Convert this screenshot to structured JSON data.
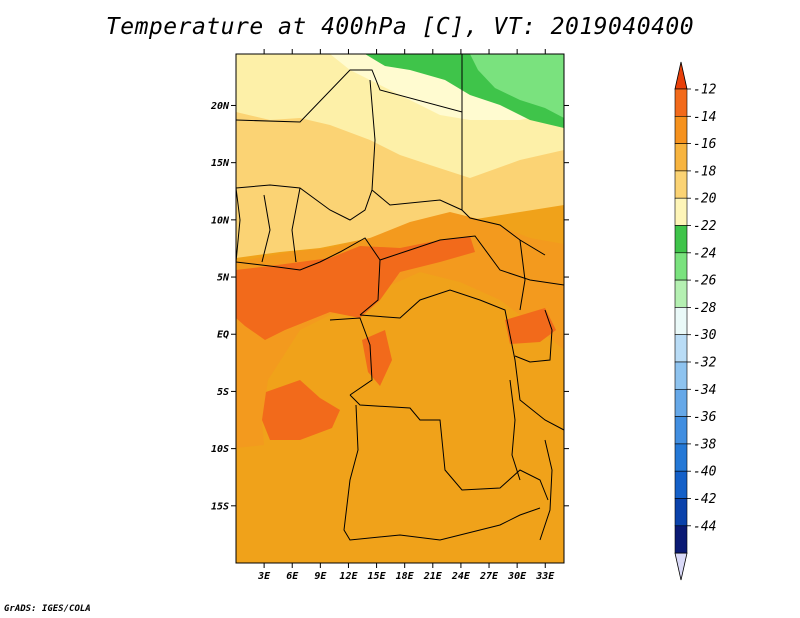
{
  "title": "Temperature at 400hPa [C], VT: 2019040400",
  "footer": "GrADS: IGES/COLA",
  "map": {
    "lon_range": [
      0,
      35
    ],
    "lat_range": [
      -20,
      24.5
    ],
    "lat_ticks": [
      {
        "value": 20,
        "label": "20N"
      },
      {
        "value": 15,
        "label": "15N"
      },
      {
        "value": 10,
        "label": "10N"
      },
      {
        "value": 5,
        "label": "5N"
      },
      {
        "value": 0,
        "label": "EQ"
      },
      {
        "value": -5,
        "label": "5S"
      },
      {
        "value": -10,
        "label": "10S"
      },
      {
        "value": -15,
        "label": "15S"
      }
    ],
    "lon_ticks": [
      {
        "value": 3,
        "label": "3E"
      },
      {
        "value": 6,
        "label": "6E"
      },
      {
        "value": 9,
        "label": "9E"
      },
      {
        "value": 12,
        "label": "12E"
      },
      {
        "value": 15,
        "label": "15E"
      },
      {
        "value": 18,
        "label": "18E"
      },
      {
        "value": 21,
        "label": "21E"
      },
      {
        "value": 24,
        "label": "24E"
      },
      {
        "value": 27,
        "label": "27E"
      },
      {
        "value": 30,
        "label": "30E"
      },
      {
        "value": 33,
        "label": "33E"
      }
    ],
    "color_regions": [
      {
        "name": "bg-band-minus-16",
        "color": "#f0a21a"
      },
      {
        "name": "band-north-minus-18",
        "color": "#fbd374"
      },
      {
        "name": "band-far-north-minus-20",
        "color": "#fdf0a8"
      },
      {
        "name": "band-sahara-minus-22",
        "color": "#fffbd0"
      },
      {
        "name": "band-green-minus-24",
        "color": "#3fc44a"
      },
      {
        "name": "band-green-minus-26",
        "color": "#7ae27e"
      },
      {
        "name": "band-central-minus-14",
        "color": "#f39a1e"
      },
      {
        "name": "band-hot-minus-12",
        "color": "#f26a1b"
      }
    ]
  },
  "colorbar": {
    "colors": [
      "#e8400a",
      "#f26a1b",
      "#f6921e",
      "#f7b43f",
      "#fbd374",
      "#fef5b8",
      "#3fc44a",
      "#7ae27e",
      "#b5f0b2",
      "#eaf9f8",
      "#b9dcf6",
      "#8ec3ef",
      "#66a8e8",
      "#418ee0",
      "#2478d6",
      "#1460c8",
      "#0a42ab",
      "#0a1a74",
      "#d9d9f7"
    ],
    "labels": [
      "-12",
      "-14",
      "-16",
      "-18",
      "-20",
      "-22",
      "-24",
      "-26",
      "-28",
      "-30",
      "-32",
      "-34",
      "-36",
      "-38",
      "-40",
      "-42",
      "-44"
    ]
  }
}
